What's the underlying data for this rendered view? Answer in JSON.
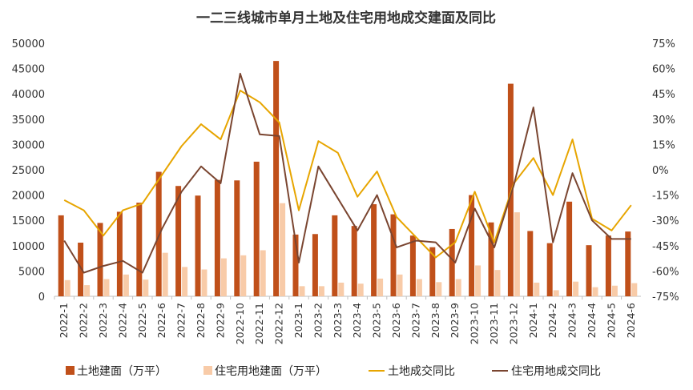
{
  "chart_data": {
    "type": "bar",
    "title": "一二三线城市单月土地及住宅用地成交建面及同比",
    "categories": [
      "2022-1",
      "2022-2",
      "2022-3",
      "2022-4",
      "2022-5",
      "2022-6",
      "2022-7",
      "2022-8",
      "2022-9",
      "2022-10",
      "2022-11",
      "2022-12",
      "2023-1",
      "2023-2",
      "2023-3",
      "2023-4",
      "2023-5",
      "2023-6",
      "2023-7",
      "2023-8",
      "2023-9",
      "2023-10",
      "2023-11",
      "2023-12",
      "2024-1",
      "2024-2",
      "2024-3",
      "2024-4",
      "2024-5",
      "2024-6"
    ],
    "left_axis": {
      "min": 0,
      "max": 50000,
      "ticks": [
        "0",
        "5000",
        "10000",
        "15000",
        "20000",
        "25000",
        "30000",
        "35000",
        "40000",
        "45000",
        "50000"
      ]
    },
    "right_axis": {
      "min": -75,
      "max": 75,
      "ticks": [
        "-75%",
        "-60%",
        "-45%",
        "-30%",
        "-15%",
        "0%",
        "15%",
        "30%",
        "45%",
        "60%",
        "75%"
      ]
    },
    "series": [
      {
        "name": "土地建面（万平）",
        "type": "bar",
        "axis": "left",
        "color": "#C0501A",
        "values": [
          16000,
          10600,
          14500,
          16700,
          18500,
          24600,
          21800,
          19900,
          23000,
          22900,
          26600,
          46500,
          12200,
          12300,
          16000,
          13900,
          18200,
          16200,
          12000,
          9700,
          13300,
          20000,
          14600,
          42000,
          12900,
          10500,
          18700,
          10100,
          12000,
          12800
        ]
      },
      {
        "name": "住宅用地建面（万平）",
        "type": "bar",
        "axis": "left",
        "color": "#F8CBA8",
        "values": [
          3200,
          2200,
          3400,
          4300,
          3300,
          8600,
          5800,
          5300,
          7500,
          8100,
          9100,
          18400,
          2000,
          2000,
          2700,
          2500,
          3500,
          4300,
          3400,
          2800,
          3400,
          6100,
          5200,
          16600,
          2700,
          1200,
          2900,
          1800,
          2100,
          2600
        ]
      },
      {
        "name": "土地成交同比",
        "type": "line",
        "axis": "right",
        "color": "#E7A500",
        "values": [
          -18,
          -24,
          -39,
          -24,
          -20,
          -3,
          14,
          27,
          18,
          47,
          40,
          28,
          -24,
          17,
          10,
          -16,
          -1,
          -28,
          -40,
          -52,
          -43,
          -13,
          -43,
          -8,
          7,
          -15,
          18,
          -29,
          -36,
          -21
        ]
      },
      {
        "name": "住宅用地成交同比",
        "type": "line",
        "axis": "right",
        "color": "#7A4530",
        "values": [
          -42,
          -61,
          -57,
          -54,
          -61,
          -35,
          -13,
          2,
          -8,
          57,
          21,
          20,
          -55,
          2,
          -17,
          -36,
          -15,
          -46,
          -42,
          -43,
          -55,
          -23,
          -46,
          -9,
          37,
          -43,
          -2,
          -30,
          -41,
          -41
        ]
      }
    ],
    "legend": "bottom",
    "grid": false
  }
}
